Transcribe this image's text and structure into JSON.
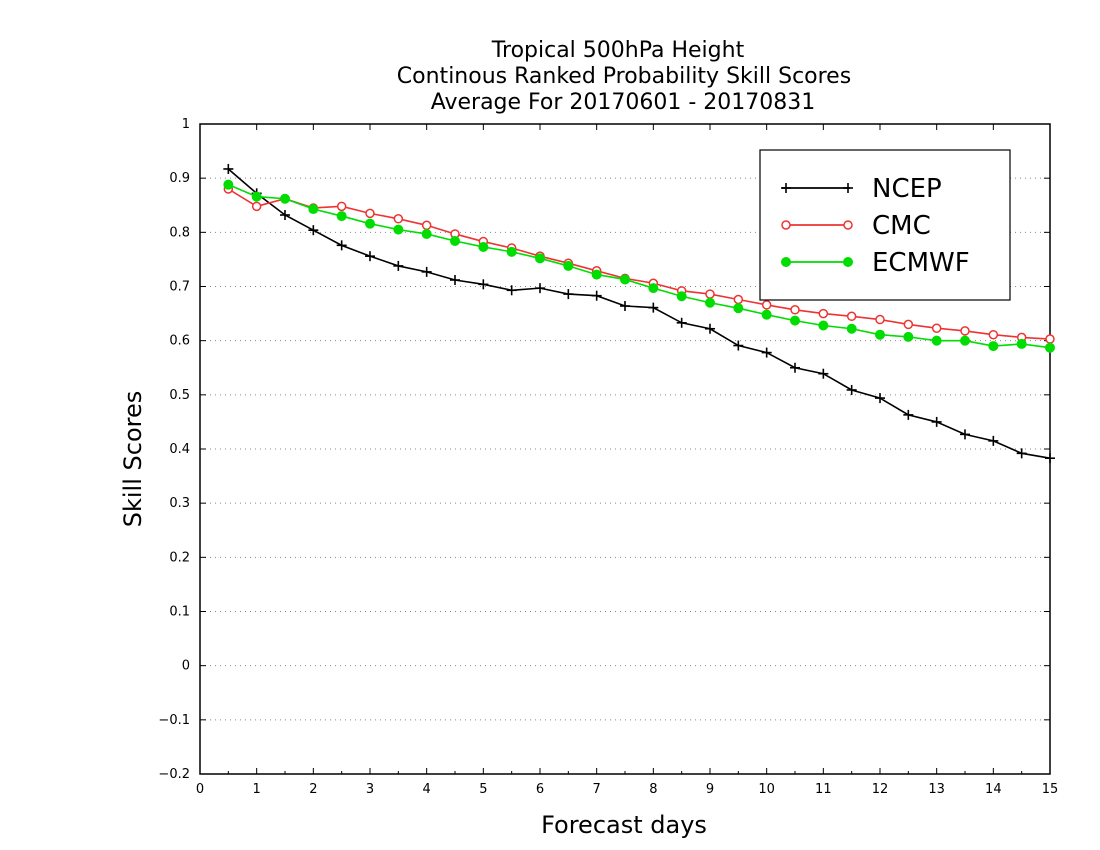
{
  "chart_data": {
    "type": "line",
    "title_lines": [
      "Tropical 500hPa Height",
      "Continous Ranked Probability Skill Scores",
      "Average For 20170601 - 20170831"
    ],
    "xlabel": "Forecast days",
    "ylabel": "Skill Scores",
    "xlim": [
      0,
      15
    ],
    "ylim": [
      -0.2,
      1
    ],
    "x_ticks": [
      "0",
      "1",
      "2",
      "3",
      "4",
      "5",
      "6",
      "7",
      "8",
      "9",
      "10",
      "11",
      "12",
      "13",
      "14",
      "15"
    ],
    "y_ticks": [
      "−0.2",
      "−0.1",
      "0",
      "0.1",
      "0.2",
      "0.3",
      "0.4",
      "0.5",
      "0.6",
      "0.7",
      "0.8",
      "0.9",
      "1"
    ],
    "grid": "horizontal dotted",
    "legend_position": "top-right",
    "x": [
      0.5,
      1,
      1.5,
      2,
      2.5,
      3,
      3.5,
      4,
      4.5,
      5,
      5.5,
      6,
      6.5,
      7,
      7.5,
      8,
      8.5,
      9,
      9.5,
      10,
      10.5,
      11,
      11.5,
      12,
      12.5,
      13,
      13.5,
      14,
      14.5,
      15
    ],
    "series": [
      {
        "name": "NCEP",
        "color": "#000000",
        "marker": "plus",
        "values": [
          0.917,
          0.872,
          0.832,
          0.804,
          0.776,
          0.756,
          0.738,
          0.727,
          0.712,
          0.704,
          0.693,
          0.697,
          0.686,
          0.683,
          0.664,
          0.661,
          0.633,
          0.622,
          0.591,
          0.578,
          0.55,
          0.539,
          0.509,
          0.494,
          0.463,
          0.45,
          0.427,
          0.415,
          0.392,
          0.383
        ]
      },
      {
        "name": "CMC",
        "color": "#ee3333",
        "marker": "open-circle",
        "values": [
          0.88,
          0.848,
          0.862,
          0.845,
          0.848,
          0.835,
          0.825,
          0.813,
          0.797,
          0.783,
          0.771,
          0.756,
          0.743,
          0.729,
          0.715,
          0.706,
          0.692,
          0.686,
          0.676,
          0.666,
          0.657,
          0.65,
          0.645,
          0.639,
          0.63,
          0.623,
          0.618,
          0.611,
          0.606,
          0.603
        ]
      },
      {
        "name": "ECMWF",
        "color": "#00dd00",
        "marker": "filled-circle",
        "values": [
          0.888,
          0.866,
          0.862,
          0.843,
          0.83,
          0.816,
          0.805,
          0.797,
          0.784,
          0.773,
          0.764,
          0.752,
          0.738,
          0.722,
          0.713,
          0.697,
          0.682,
          0.67,
          0.66,
          0.648,
          0.637,
          0.628,
          0.622,
          0.611,
          0.607,
          0.6,
          0.6,
          0.59,
          0.594,
          0.587
        ]
      }
    ]
  }
}
